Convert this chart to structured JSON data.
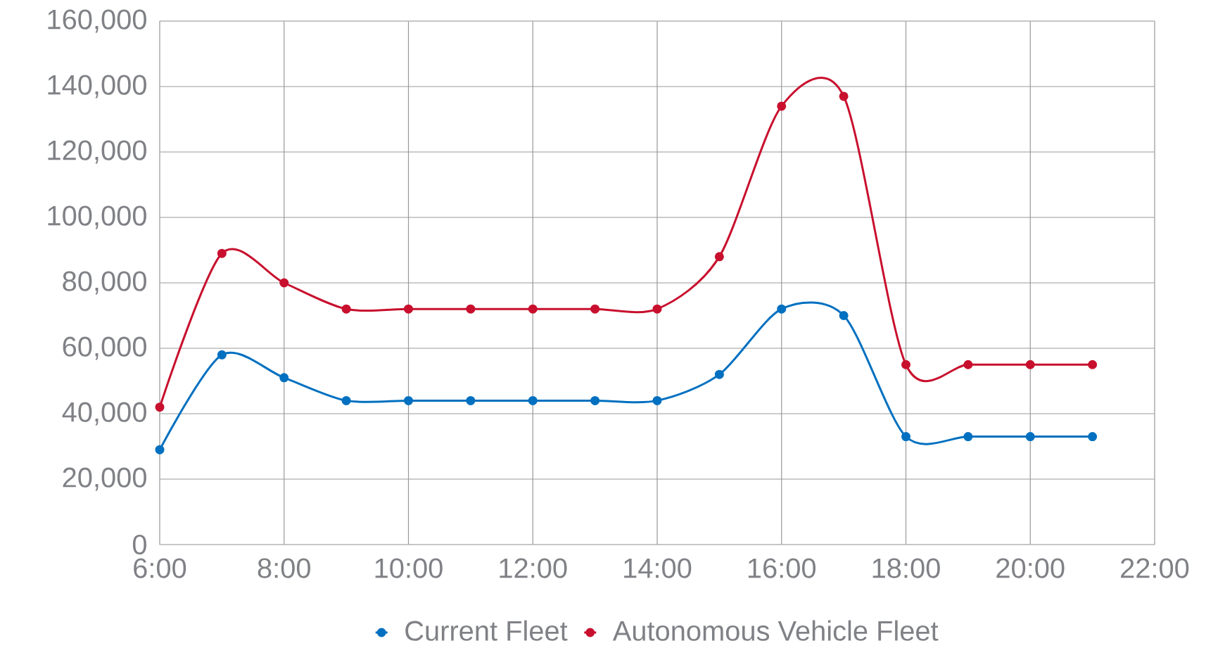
{
  "chart_data": {
    "type": "line",
    "x": [
      6,
      7,
      8,
      9,
      10,
      11,
      12,
      13,
      14,
      15,
      16,
      17,
      18,
      19,
      20,
      21
    ],
    "series": [
      {
        "name": "Current Fleet",
        "color": "#0070c0",
        "values": [
          29000,
          58000,
          51000,
          44000,
          44000,
          44000,
          44000,
          44000,
          44000,
          52000,
          72000,
          70000,
          33000,
          33000,
          33000,
          33000
        ]
      },
      {
        "name": "Autonomous Vehicle Fleet",
        "color": "#c8102e",
        "values": [
          42000,
          89000,
          80000,
          72000,
          72000,
          72000,
          72000,
          72000,
          72000,
          88000,
          134000,
          137000,
          55000,
          55000,
          55000,
          55000
        ]
      }
    ],
    "xlim": [
      6,
      22
    ],
    "xticks": [
      {
        "value": 6,
        "label": "6:00"
      },
      {
        "value": 8,
        "label": "8:00"
      },
      {
        "value": 10,
        "label": "10:00"
      },
      {
        "value": 12,
        "label": "12:00"
      },
      {
        "value": 14,
        "label": "14:00"
      },
      {
        "value": 16,
        "label": "16:00"
      },
      {
        "value": 18,
        "label": "18:00"
      },
      {
        "value": 20,
        "label": "20:00"
      },
      {
        "value": 22,
        "label": "22:00"
      }
    ],
    "ylim": [
      0,
      160000
    ],
    "yticks": [
      0,
      {
        "value": 20000,
        "label": "20,000"
      },
      {
        "value": 40000,
        "label": "40,000"
      },
      {
        "value": 60000,
        "label": "60,000"
      },
      {
        "value": 80000,
        "label": "80,000"
      },
      {
        "value": 100000,
        "label": "100,000"
      },
      {
        "value": 120000,
        "label": "120,000"
      },
      {
        "value": 140000,
        "label": "140,000"
      },
      {
        "value": 160000,
        "label": "160,000"
      }
    ],
    "grid": true,
    "legend": "bottom",
    "marker": "circle",
    "line_style": "solid"
  }
}
